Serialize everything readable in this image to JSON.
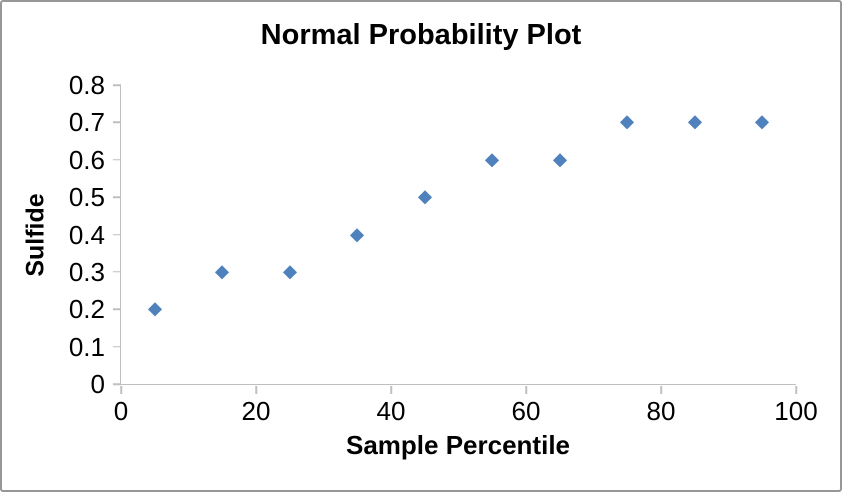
{
  "window": {
    "background_color": "#ffffff",
    "border_color": "#979797"
  },
  "chart_data": {
    "type": "scatter",
    "title": "Normal Probability Plot",
    "xlabel": "Sample Percentile",
    "ylabel": "Sulfide",
    "xlim": [
      0,
      100
    ],
    "ylim": [
      0,
      0.8
    ],
    "xticks": [
      0,
      20,
      40,
      60,
      80,
      100
    ],
    "yticks": [
      0,
      0.1,
      0.2,
      0.3,
      0.4,
      0.5,
      0.6,
      0.7,
      0.8
    ],
    "xtick_labels": [
      "0",
      "20",
      "40",
      "60",
      "80",
      "100"
    ],
    "ytick_labels": [
      "0",
      "0.1",
      "0.2",
      "0.3",
      "0.4",
      "0.5",
      "0.6",
      "0.7",
      "0.8"
    ],
    "grid": false,
    "legend": "none",
    "axis_color": "#bfbfbf",
    "text_color": "#000000",
    "series": [
      {
        "name": "Sulfide",
        "marker": "diamond",
        "color": "#4F81BD",
        "points": [
          {
            "x": 5,
            "y": 0.2
          },
          {
            "x": 15,
            "y": 0.3
          },
          {
            "x": 25,
            "y": 0.3
          },
          {
            "x": 35,
            "y": 0.4
          },
          {
            "x": 45,
            "y": 0.5
          },
          {
            "x": 55,
            "y": 0.6
          },
          {
            "x": 65,
            "y": 0.6
          },
          {
            "x": 75,
            "y": 0.7
          },
          {
            "x": 85,
            "y": 0.7
          },
          {
            "x": 95,
            "y": 0.7
          }
        ]
      }
    ]
  }
}
